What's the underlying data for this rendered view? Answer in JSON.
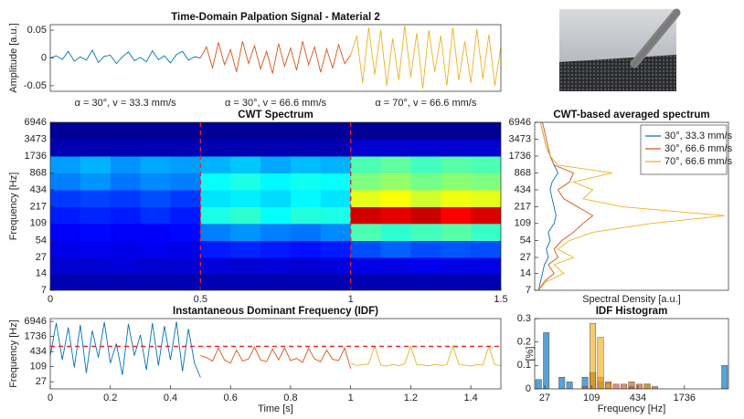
{
  "chart_data": [
    {
      "type": "line",
      "title": "Time-Domain Palpation Signal - Material 2",
      "ylabel": "Amplitude [a.u.]",
      "xlim": [
        0,
        1.5
      ],
      "ylim": [
        -0.06,
        0.06
      ],
      "yticks": [
        -0.05,
        0,
        0.05
      ],
      "annotations": [
        "α = 30°, v = 33.3 mm/s",
        "α = 30°, v = 66.6 mm/s",
        "α = 70°, v = 66.6 mm/s"
      ],
      "series": [
        {
          "color": "#0072BD",
          "x": [
            0,
            0.02,
            0.04,
            0.06,
            0.08,
            0.1,
            0.12,
            0.14,
            0.16,
            0.18,
            0.2,
            0.22,
            0.24,
            0.26,
            0.28,
            0.3,
            0.32,
            0.34,
            0.36,
            0.38,
            0.4,
            0.42,
            0.44,
            0.46,
            0.48,
            0.5
          ],
          "values": [
            0,
            0.004,
            -0.003,
            0.012,
            -0.006,
            0.002,
            -0.004,
            0.014,
            -0.008,
            0.003,
            0.005,
            -0.01,
            0.002,
            0.011,
            -0.005,
            0.001,
            -0.007,
            0.013,
            -0.003,
            0.004,
            -0.009,
            0.006,
            0.012,
            -0.004,
            0.002,
            0
          ]
        },
        {
          "color": "#D95319",
          "x": [
            0.5,
            0.52,
            0.54,
            0.56,
            0.58,
            0.6,
            0.62,
            0.64,
            0.66,
            0.68,
            0.7,
            0.72,
            0.74,
            0.76,
            0.78,
            0.8,
            0.82,
            0.84,
            0.86,
            0.88,
            0.9,
            0.92,
            0.94,
            0.96,
            0.98,
            1.0
          ],
          "values": [
            0,
            0.02,
            -0.018,
            0.028,
            -0.012,
            0.015,
            -0.025,
            0.03,
            -0.01,
            0.022,
            -0.02,
            0.012,
            -0.028,
            0.026,
            -0.015,
            0.018,
            -0.022,
            0.03,
            -0.012,
            0.02,
            -0.026,
            0.016,
            -0.018,
            0.024,
            -0.01,
            0.005
          ]
        },
        {
          "color": "#EDB120",
          "x": [
            1.0,
            1.02,
            1.04,
            1.06,
            1.08,
            1.1,
            1.12,
            1.14,
            1.16,
            1.18,
            1.2,
            1.22,
            1.24,
            1.26,
            1.28,
            1.3,
            1.32,
            1.34,
            1.36,
            1.38,
            1.4,
            1.42,
            1.44,
            1.46,
            1.48,
            1.5
          ],
          "values": [
            0.005,
            0.04,
            -0.045,
            0.055,
            -0.03,
            0.05,
            -0.05,
            0.035,
            -0.04,
            0.058,
            -0.035,
            0.045,
            -0.055,
            0.05,
            -0.025,
            0.04,
            -0.05,
            0.055,
            -0.04,
            0.03,
            -0.045,
            0.052,
            -0.038,
            0.042,
            -0.05,
            0.02
          ]
        }
      ]
    },
    {
      "type": "heatmap",
      "title": "CWT Spectrum",
      "ylabel": "Frequency [Hz]",
      "log_y": true,
      "xlim": [
        0,
        1.5
      ],
      "xticks": [
        0,
        0.5,
        1,
        1.5
      ],
      "ylim": [
        7,
        6946
      ],
      "yticks": [
        7,
        14,
        27,
        54,
        109,
        217,
        434,
        868,
        1736,
        3473,
        6946
      ],
      "x_edges": [
        0,
        0.1,
        0.2,
        0.3,
        0.4,
        0.5,
        0.6,
        0.7,
        0.8,
        0.9,
        1.0,
        1.1,
        1.2,
        1.3,
        1.4,
        1.5
      ],
      "y_edges": [
        7,
        14,
        27,
        54,
        109,
        217,
        434,
        868,
        1736,
        3473,
        6946
      ],
      "zlim": [
        0,
        1
      ],
      "vlines": [
        0.5,
        1
      ],
      "z": [
        [
          0.05,
          0.05,
          0.05,
          0.05,
          0.05,
          0.05,
          0.05,
          0.05,
          0.05,
          0.05,
          0.05,
          0.05,
          0.05,
          0.05,
          0.05
        ],
        [
          0.08,
          0.08,
          0.09,
          0.08,
          0.08,
          0.09,
          0.08,
          0.09,
          0.08,
          0.09,
          0.1,
          0.1,
          0.11,
          0.1,
          0.1
        ],
        [
          0.1,
          0.11,
          0.1,
          0.11,
          0.1,
          0.15,
          0.16,
          0.15,
          0.14,
          0.15,
          0.2,
          0.22,
          0.2,
          0.21,
          0.2
        ],
        [
          0.12,
          0.13,
          0.12,
          0.12,
          0.13,
          0.25,
          0.27,
          0.25,
          0.24,
          0.26,
          0.45,
          0.42,
          0.44,
          0.46,
          0.43
        ],
        [
          0.15,
          0.16,
          0.15,
          0.17,
          0.15,
          0.4,
          0.42,
          0.38,
          0.41,
          0.4,
          0.92,
          0.9,
          0.93,
          0.88,
          0.91
        ],
        [
          0.18,
          0.19,
          0.18,
          0.2,
          0.18,
          0.35,
          0.36,
          0.34,
          0.37,
          0.35,
          0.6,
          0.62,
          0.58,
          0.61,
          0.6
        ],
        [
          0.25,
          0.27,
          0.24,
          0.26,
          0.25,
          0.38,
          0.4,
          0.37,
          0.39,
          0.38,
          0.5,
          0.52,
          0.49,
          0.51,
          0.5
        ],
        [
          0.28,
          0.3,
          0.27,
          0.29,
          0.28,
          0.3,
          0.32,
          0.29,
          0.31,
          0.3,
          0.45,
          0.47,
          0.44,
          0.46,
          0.45
        ],
        [
          0.05,
          0.05,
          0.05,
          0.05,
          0.05,
          0.05,
          0.05,
          0.05,
          0.05,
          0.05,
          0.08,
          0.08,
          0.08,
          0.08,
          0.08
        ],
        [
          0.02,
          0.02,
          0.02,
          0.02,
          0.02,
          0.02,
          0.02,
          0.02,
          0.02,
          0.02,
          0.02,
          0.02,
          0.02,
          0.02,
          0.02
        ]
      ]
    },
    {
      "type": "line",
      "orientation": "horizontal",
      "title": "CWT-based averaged spectrum",
      "xlabel": "Spectral Density [a.u.]",
      "log_y": true,
      "xlim": [
        0,
        1
      ],
      "ylim": [
        7,
        6946
      ],
      "yticks": [
        7,
        14,
        27,
        54,
        109,
        217,
        434,
        868,
        1736,
        3473,
        6946
      ],
      "legend": "upper right",
      "y": [
        7,
        10,
        14,
        20,
        27,
        38,
        54,
        76,
        109,
        150,
        217,
        300,
        434,
        600,
        868,
        1200,
        1736,
        2500,
        3473,
        5000,
        6946
      ],
      "series": [
        {
          "name": "30°, 33.3 mm/s",
          "color": "#0072BD",
          "values": [
            0.02,
            0.03,
            0.04,
            0.05,
            0.07,
            0.06,
            0.08,
            0.07,
            0.1,
            0.11,
            0.1,
            0.09,
            0.08,
            0.09,
            0.12,
            0.1,
            0.08,
            0.06,
            0.05,
            0.04,
            0.03
          ]
        },
        {
          "name": "30°, 66.6 mm/s",
          "color": "#D95319",
          "values": [
            0.02,
            0.05,
            0.1,
            0.07,
            0.12,
            0.1,
            0.14,
            0.2,
            0.25,
            0.3,
            0.22,
            0.15,
            0.12,
            0.18,
            0.2,
            0.1,
            0.08,
            0.07,
            0.06,
            0.05,
            0.04
          ]
        },
        {
          "name": "70°, 66.6 mm/s",
          "color": "#EDB120",
          "values": [
            0.02,
            0.06,
            0.15,
            0.1,
            0.2,
            0.12,
            0.18,
            0.3,
            0.6,
            0.98,
            0.45,
            0.25,
            0.3,
            0.2,
            0.4,
            0.12,
            0.08,
            0.06,
            0.05,
            0.04,
            0.03
          ]
        }
      ]
    },
    {
      "type": "line",
      "title": "Instantaneous Dominant Frequency (IDF)",
      "ylabel": "Frequency [Hz]",
      "xlabel": "Time [s]",
      "log_y": true,
      "xlim": [
        0,
        1.5
      ],
      "xticks": [
        0,
        0.2,
        0.4,
        0.6,
        0.8,
        1,
        1.2,
        1.4
      ],
      "ylim": [
        14,
        9000
      ],
      "yticks": [
        27,
        109,
        434,
        1736,
        6946
      ],
      "hlines": [
        700
      ],
      "series": [
        {
          "color": "#0072BD",
          "x": [
            0,
            0.02,
            0.04,
            0.06,
            0.08,
            0.1,
            0.12,
            0.14,
            0.16,
            0.18,
            0.2,
            0.22,
            0.24,
            0.26,
            0.28,
            0.3,
            0.32,
            0.34,
            0.36,
            0.38,
            0.4,
            0.42,
            0.44,
            0.46,
            0.48,
            0.5
          ],
          "values": [
            300,
            6000,
            200,
            4000,
            100,
            5000,
            60,
            3000,
            250,
            6500,
            150,
            900,
            50,
            5500,
            300,
            2000,
            80,
            6000,
            120,
            4500,
            200,
            6800,
            70,
            3500,
            150,
            40
          ]
        },
        {
          "color": "#D95319",
          "x": [
            0.5,
            0.52,
            0.54,
            0.56,
            0.58,
            0.6,
            0.62,
            0.64,
            0.66,
            0.68,
            0.7,
            0.72,
            0.74,
            0.76,
            0.78,
            0.8,
            0.82,
            0.84,
            0.86,
            0.88,
            0.9,
            0.92,
            0.94,
            0.96,
            0.98,
            1.0
          ],
          "values": [
            300,
            250,
            180,
            600,
            200,
            150,
            500,
            180,
            220,
            650,
            200,
            170,
            550,
            200,
            600,
            190,
            230,
            160,
            580,
            220,
            170,
            500,
            210,
            190,
            600,
            90
          ]
        },
        {
          "color": "#EDB120",
          "x": [
            1.0,
            1.02,
            1.04,
            1.06,
            1.08,
            1.1,
            1.12,
            1.14,
            1.16,
            1.18,
            1.2,
            1.22,
            1.24,
            1.26,
            1.28,
            1.3,
            1.32,
            1.34,
            1.36,
            1.38,
            1.4,
            1.42,
            1.44,
            1.46,
            1.48,
            1.5
          ],
          "values": [
            150,
            120,
            130,
            140,
            700,
            125,
            115,
            130,
            120,
            140,
            700,
            130,
            125,
            118,
            132,
            120,
            128,
            700,
            135,
            122,
            115,
            130,
            125,
            700,
            128,
            120
          ]
        }
      ]
    },
    {
      "type": "histogram",
      "title": "IDF Histogram",
      "ylabel": "[%]",
      "xlabel": "Frequency [Hz]",
      "log_x": true,
      "xlim": [
        20,
        6451
      ],
      "xticks": [
        27,
        109,
        434,
        1736
      ],
      "ylim": [
        0,
        0.3
      ],
      "yticks": [
        0,
        0.1,
        0.2,
        0.3
      ],
      "bins": [
        20,
        25.2,
        31.7,
        40,
        50.4,
        63.5,
        80,
        100.8,
        127,
        160,
        201.6,
        254,
        320,
        403,
        508,
        640,
        806,
        1016,
        1280,
        1613,
        2032,
        2560,
        3225,
        4064,
        5120,
        6451
      ],
      "series": [
        {
          "color": "#0072BD",
          "values": [
            0.04,
            0.24,
            0,
            0.05,
            0.03,
            0,
            0.05,
            0.07,
            0.03,
            0.01,
            0,
            0,
            0.01,
            0,
            0.02,
            0,
            0,
            0,
            0,
            0,
            0,
            0,
            0,
            0,
            0.1
          ]
        },
        {
          "color": "#D95319",
          "values": [
            0,
            0,
            0,
            0,
            0,
            0,
            0.01,
            0.07,
            0.05,
            0.03,
            0.02,
            0.02,
            0.03,
            0.02,
            0.02,
            0.01,
            0,
            0,
            0,
            0,
            0,
            0,
            0,
            0,
            0
          ]
        },
        {
          "color": "#EDB120",
          "values": [
            0,
            0,
            0,
            0,
            0,
            0,
            0,
            0.28,
            0.22,
            0.02,
            0,
            0,
            0,
            0,
            0.02,
            0,
            0,
            0,
            0,
            0,
            0,
            0,
            0,
            0,
            0
          ]
        }
      ]
    }
  ]
}
